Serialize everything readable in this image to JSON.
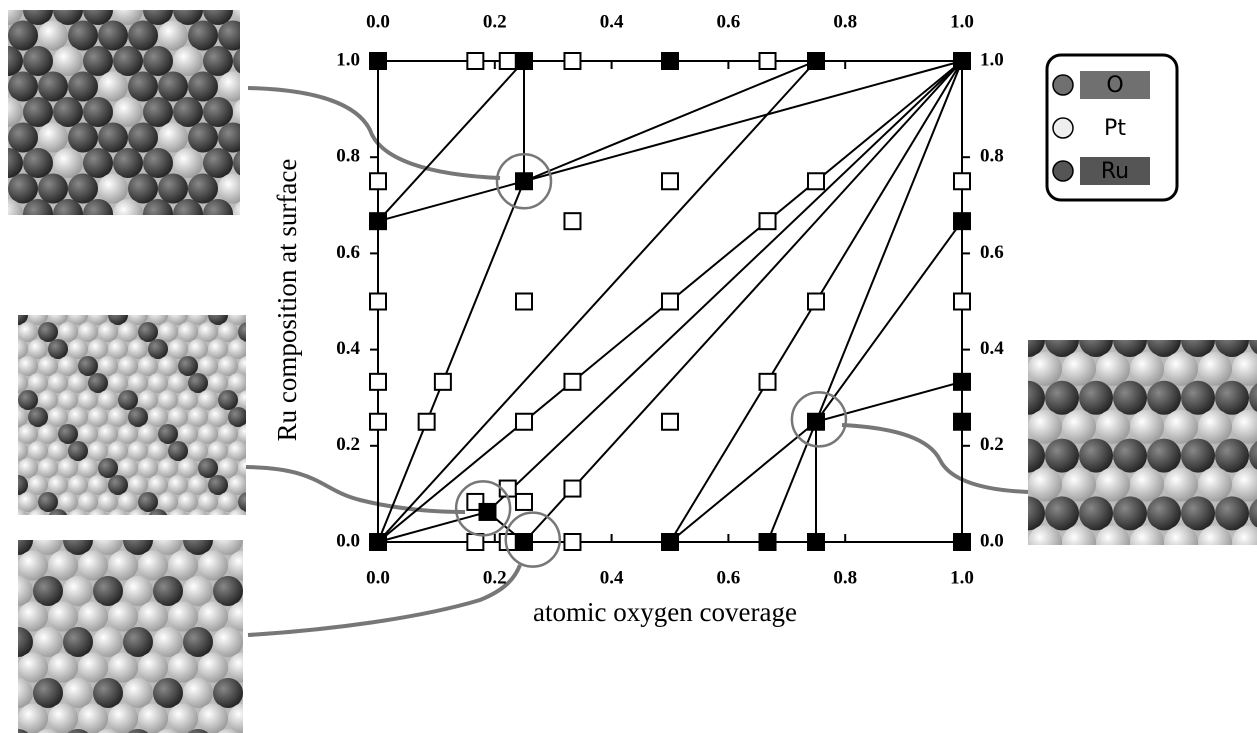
{
  "chart_data": {
    "type": "scatter",
    "x_label": "atomic oxygen coverage",
    "y_label": "Ru composition at surface",
    "xlim": [
      0,
      1
    ],
    "ylim": [
      0,
      1
    ],
    "xticks": [
      {
        "value": 0,
        "label": "0.0"
      },
      {
        "value": 0.2,
        "label": "0.2"
      },
      {
        "value": 0.4,
        "label": "0.4"
      },
      {
        "value": 0.6,
        "label": "0.6"
      },
      {
        "value": 0.8,
        "label": "0.8"
      },
      {
        "value": 1,
        "label": "1.0"
      }
    ],
    "yticks": [
      {
        "value": 0,
        "label": "0.0"
      },
      {
        "value": 0.2,
        "label": "0.2"
      },
      {
        "value": 0.4,
        "label": "0.4"
      },
      {
        "value": 0.6,
        "label": "0.6"
      },
      {
        "value": 0.8,
        "label": "0.8"
      },
      {
        "value": 1,
        "label": "1.0"
      }
    ],
    "series": [
      {
        "marker": "filled",
        "color": "#000000",
        "x": [
          0,
          0.25,
          0.5,
          0.75,
          1,
          0,
          0.25,
          0,
          0.1875,
          0.25,
          0.5,
          0.667,
          0.75,
          1,
          0.75,
          1,
          1,
          1
        ],
        "y": [
          1,
          1,
          1,
          1,
          1,
          0.667,
          0.75,
          0,
          0.0625,
          0,
          0,
          0,
          0,
          0,
          0.25,
          0.25,
          0.333,
          0.667
        ]
      },
      {
        "marker": "open",
        "color": "#000000",
        "x": [
          0.1667,
          0.2222,
          0.333,
          0.667,
          0,
          0,
          0,
          0,
          0.333,
          0.5,
          0.25,
          0.1111,
          0.0833,
          0.333,
          0.25,
          0.5,
          0.5,
          0.667,
          0.75,
          0.75,
          0.667,
          1,
          1,
          0.1667,
          0.2222,
          0.25,
          0.333,
          0.1667,
          0.2222,
          0.333
        ],
        "y": [
          1,
          1,
          1,
          1,
          0.75,
          0.5,
          0.333,
          0.25,
          0.667,
          0.75,
          0.5,
          0.333,
          0.25,
          0.333,
          0.25,
          0.5,
          0.25,
          0.667,
          0.75,
          0.5,
          0.333,
          0.75,
          0.5,
          0.0833,
          0.1111,
          0.0833,
          0.1111,
          0,
          0,
          0
        ]
      }
    ],
    "tie_lines": [
      [
        0,
        0.667,
        0.25,
        1
      ],
      [
        0,
        0.667,
        0.25,
        0.75
      ],
      [
        0.25,
        1,
        0.25,
        0.75
      ],
      [
        0.25,
        0.75,
        0.75,
        1
      ],
      [
        0.25,
        0.75,
        1,
        1
      ],
      [
        0.25,
        0.75,
        0,
        0
      ],
      [
        0,
        0,
        0.75,
        1
      ],
      [
        0,
        0,
        1,
        1
      ],
      [
        0,
        0,
        0.1875,
        0.0625
      ],
      [
        0.1875,
        0.0625,
        1,
        1
      ],
      [
        0.1875,
        0.0625,
        0.25,
        0
      ],
      [
        0.25,
        0,
        1,
        1
      ],
      [
        0.5,
        0,
        1,
        1
      ],
      [
        0.5,
        0,
        0.75,
        0.25
      ],
      [
        0.667,
        0,
        0.75,
        0.25
      ],
      [
        0.75,
        0,
        0.75,
        0.25
      ],
      [
        0.75,
        0.25,
        1,
        1
      ],
      [
        0.75,
        0.25,
        1,
        0.333
      ],
      [
        0.75,
        0.25,
        1,
        0.667
      ]
    ],
    "highlight_circles": [
      {
        "x": 0.25,
        "y": 0.75
      },
      {
        "x": 0.18,
        "y": 0.07
      },
      {
        "x": 0.265,
        "y": 0.005
      },
      {
        "x": 0.755,
        "y": 0.255
      }
    ],
    "legend": [
      {
        "label": "O",
        "color": "#707070"
      },
      {
        "label": "Pt",
        "color": "#eeeeee"
      },
      {
        "label": "Ru",
        "color": "#555555"
      }
    ]
  }
}
